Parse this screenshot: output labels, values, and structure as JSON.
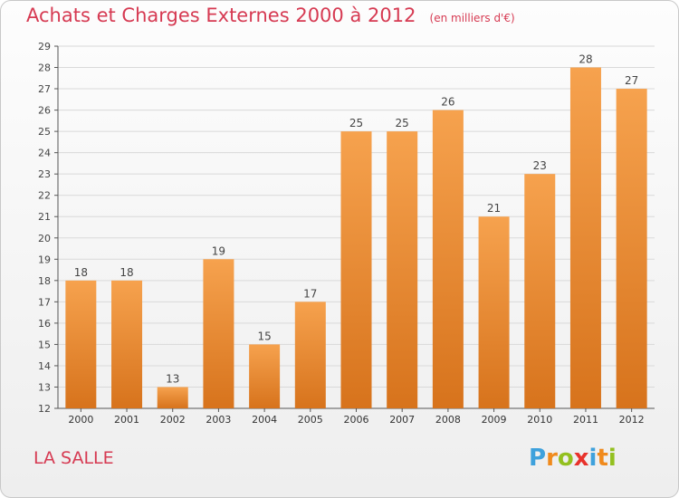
{
  "header": {
    "title": "Achats et Charges Externes 2000 à 2012",
    "subtitle": "(en milliers d'€)"
  },
  "footer": {
    "commune": "LA SALLE",
    "logo_text": "Proxiti"
  },
  "colors": {
    "title": "#d63a52",
    "bar_top": "#f6a24e",
    "bar_bottom": "#d7731c",
    "grid": "#d9d9d9"
  },
  "chart_data": {
    "type": "bar",
    "categories": [
      "2000",
      "2001",
      "2002",
      "2003",
      "2004",
      "2005",
      "2006",
      "2007",
      "2008",
      "2009",
      "2010",
      "2011",
      "2012"
    ],
    "values": [
      18,
      18,
      13,
      19,
      15,
      17,
      25,
      25,
      26,
      21,
      23,
      28,
      27
    ],
    "ylim": [
      12,
      29
    ],
    "yticks": [
      12,
      13,
      14,
      15,
      16,
      17,
      18,
      19,
      20,
      21,
      22,
      23,
      24,
      25,
      26,
      27,
      28,
      29
    ],
    "grid": true,
    "data_labels": true
  }
}
